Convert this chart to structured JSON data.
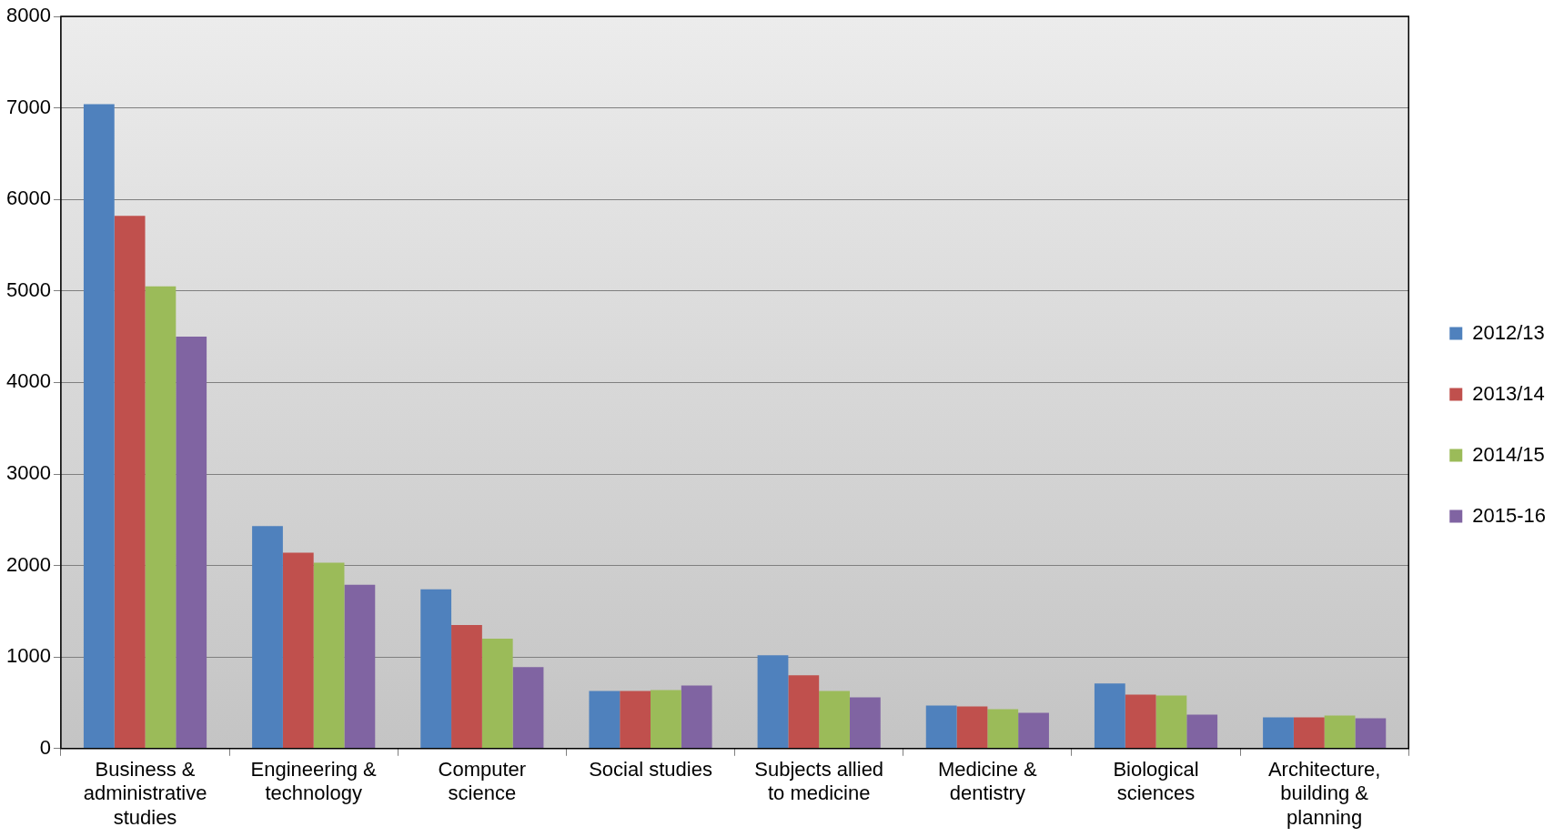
{
  "chart_data": {
    "type": "bar",
    "categories": [
      "Business & administrative studies",
      "Engineering & technology",
      "Computer science",
      "Social studies",
      "Subjects allied to medicine",
      "Medicine & dentistry",
      "Biological sciences",
      "Architecture, building & planning"
    ],
    "series": [
      {
        "name": "2012/13",
        "color": "#4f81bd",
        "values": [
          7040,
          2430,
          1740,
          630,
          1020,
          470,
          710,
          340
        ]
      },
      {
        "name": "2013/14",
        "color": "#c0504d",
        "values": [
          5820,
          2140,
          1350,
          630,
          800,
          460,
          590,
          340
        ]
      },
      {
        "name": "2014/15",
        "color": "#9bbb59",
        "values": [
          5050,
          2030,
          1200,
          640,
          630,
          430,
          580,
          360
        ]
      },
      {
        "name": "2015-16",
        "color": "#8064a2",
        "values": [
          4500,
          1790,
          890,
          690,
          560,
          390,
          370,
          330
        ]
      }
    ],
    "ylim": [
      0,
      8000
    ],
    "yticks": [
      0,
      1000,
      2000,
      3000,
      4000,
      5000,
      6000,
      7000,
      8000
    ],
    "grid": "y",
    "legend": "right"
  }
}
